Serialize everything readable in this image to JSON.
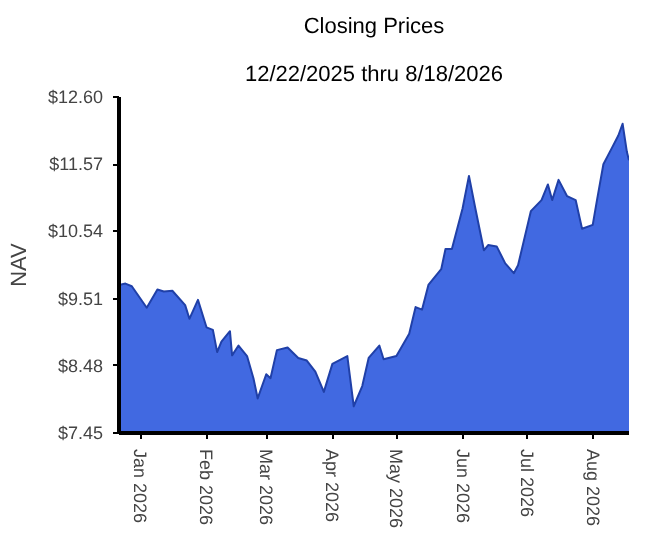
{
  "chart_data": {
    "type": "area",
    "title": "Closing Prices",
    "subtitle": "12/22/2025 thru 8/18/2026",
    "ylabel": "NAV",
    "x": [
      "2025-12-22",
      "2025-12-25",
      "2025-12-28",
      "2026-01-04",
      "2026-01-09",
      "2026-01-12",
      "2026-01-16",
      "2026-01-22",
      "2026-01-24",
      "2026-01-28",
      "2026-02-01",
      "2026-02-04",
      "2026-02-06",
      "2026-02-08",
      "2026-02-12",
      "2026-02-13",
      "2026-02-16",
      "2026-02-20",
      "2026-02-23",
      "2026-02-25",
      "2026-03-01",
      "2026-03-03",
      "2026-03-06",
      "2026-03-11",
      "2026-03-16",
      "2026-03-20",
      "2026-03-24",
      "2026-03-28",
      "2026-04-01",
      "2026-04-08",
      "2026-04-11",
      "2026-04-15",
      "2026-04-18",
      "2026-04-23",
      "2026-04-25",
      "2026-05-01",
      "2026-05-07",
      "2026-05-10",
      "2026-05-13",
      "2026-05-16",
      "2026-05-22",
      "2026-05-24",
      "2026-05-27",
      "2026-06-01",
      "2026-06-04",
      "2026-06-07",
      "2026-06-11",
      "2026-06-13",
      "2026-06-17",
      "2026-06-21",
      "2026-06-25",
      "2026-06-27",
      "2026-07-03",
      "2026-07-08",
      "2026-07-11",
      "2026-07-13",
      "2026-07-16",
      "2026-07-20",
      "2026-07-24",
      "2026-07-27",
      "2026-08-01",
      "2026-08-03",
      "2026-08-06",
      "2026-08-10",
      "2026-08-13",
      "2026-08-15",
      "2026-08-17",
      "2026-08-18"
    ],
    "series": [
      {
        "color": "#4169e1",
        "values": [
          9.72,
          9.74,
          9.7,
          9.37,
          9.65,
          9.62,
          9.63,
          9.41,
          9.2,
          9.49,
          9.07,
          9.03,
          8.69,
          8.85,
          9.01,
          8.64,
          8.79,
          8.63,
          8.29,
          7.98,
          8.35,
          8.29,
          8.72,
          8.76,
          8.6,
          8.56,
          8.39,
          8.08,
          8.51,
          8.63,
          7.86,
          8.17,
          8.6,
          8.79,
          8.58,
          8.63,
          8.97,
          9.38,
          9.34,
          9.72,
          9.96,
          10.27,
          10.27,
          10.89,
          11.39,
          10.89,
          10.25,
          10.33,
          10.31,
          10.05,
          9.9,
          10.02,
          10.85,
          11.02,
          11.26,
          11.02,
          11.33,
          11.08,
          11.02,
          10.58,
          10.64,
          11.02,
          11.57,
          11.82,
          12.01,
          12.19,
          11.76,
          11.63
        ]
      }
    ],
    "xlim": [
      "2025-12-22",
      "2026-08-18"
    ],
    "xticks": [
      {
        "value": "2026-01-01",
        "label": "Jan 2026"
      },
      {
        "value": "2026-02-01",
        "label": "Feb 2026"
      },
      {
        "value": "2026-03-01",
        "label": "Mar 2026"
      },
      {
        "value": "2026-04-01",
        "label": "Apr 2026"
      },
      {
        "value": "2026-05-01",
        "label": "May 2026"
      },
      {
        "value": "2026-06-01",
        "label": "Jun 2026"
      },
      {
        "value": "2026-07-01",
        "label": "Jul 2026"
      },
      {
        "value": "2026-08-01",
        "label": "Aug 2026"
      }
    ],
    "ylim": [
      7.45,
      12.6
    ],
    "yticks": [
      {
        "value": 7.45,
        "label": "$7.45"
      },
      {
        "value": 8.48,
        "label": "$8.48"
      },
      {
        "value": 9.51,
        "label": "$9.51"
      },
      {
        "value": 10.54,
        "label": "$10.54"
      },
      {
        "value": 11.57,
        "label": "$11.57"
      },
      {
        "value": 12.6,
        "label": "$12.60"
      }
    ],
    "grid": false
  }
}
